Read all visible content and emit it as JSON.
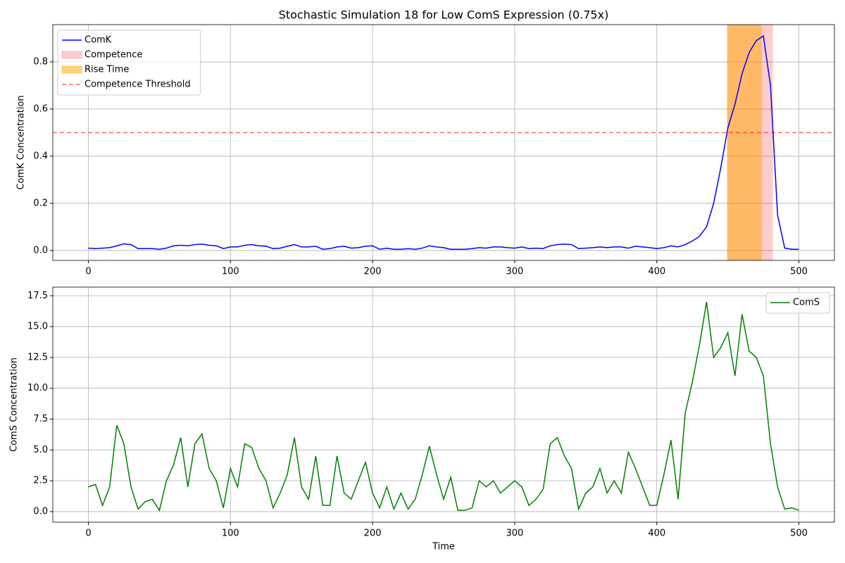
{
  "chart_data": [
    {
      "type": "line",
      "title": "Stochastic Simulation 18 for Low ComS Expression (0.75x)",
      "y_label": "ComK Concentration",
      "x": [
        0,
        5,
        10,
        15,
        20,
        25,
        30,
        35,
        40,
        45,
        50,
        55,
        60,
        65,
        70,
        75,
        80,
        85,
        90,
        95,
        100,
        105,
        110,
        115,
        120,
        125,
        130,
        135,
        140,
        145,
        150,
        155,
        160,
        165,
        170,
        175,
        180,
        185,
        190,
        195,
        200,
        205,
        210,
        215,
        220,
        225,
        230,
        235,
        240,
        245,
        250,
        255,
        260,
        265,
        270,
        275,
        280,
        285,
        290,
        295,
        300,
        305,
        310,
        315,
        320,
        325,
        330,
        335,
        340,
        345,
        350,
        355,
        360,
        365,
        370,
        375,
        380,
        385,
        390,
        395,
        400,
        405,
        410,
        415,
        420,
        425,
        430,
        435,
        440,
        445,
        450,
        455,
        460,
        465,
        470,
        475,
        480,
        485,
        490,
        495,
        500
      ],
      "series": [
        {
          "name": "ComK",
          "color": "#0000ff",
          "values": [
            0.01,
            0.008,
            0.01,
            0.012,
            0.02,
            0.028,
            0.025,
            0.008,
            0.008,
            0.008,
            0.005,
            0.01,
            0.02,
            0.022,
            0.02,
            0.025,
            0.027,
            0.022,
            0.02,
            0.008,
            0.015,
            0.015,
            0.022,
            0.025,
            0.02,
            0.018,
            0.008,
            0.01,
            0.018,
            0.025,
            0.015,
            0.015,
            0.018,
            0.005,
            0.008,
            0.015,
            0.018,
            0.01,
            0.012,
            0.018,
            0.02,
            0.005,
            0.01,
            0.005,
            0.005,
            0.008,
            0.005,
            0.01,
            0.02,
            0.015,
            0.012,
            0.005,
            0.005,
            0.005,
            0.008,
            0.012,
            0.01,
            0.015,
            0.015,
            0.012,
            0.01,
            0.015,
            0.008,
            0.01,
            0.008,
            0.02,
            0.025,
            0.027,
            0.025,
            0.008,
            0.01,
            0.012,
            0.015,
            0.012,
            0.015,
            0.015,
            0.01,
            0.018,
            0.015,
            0.012,
            0.008,
            0.012,
            0.02,
            0.015,
            0.025,
            0.04,
            0.06,
            0.1,
            0.2,
            0.35,
            0.52,
            0.62,
            0.75,
            0.84,
            0.89,
            0.91,
            0.7,
            0.15,
            0.01,
            0.005,
            0.005
          ]
        }
      ],
      "spans": [
        {
          "name": "Competence",
          "x": [
            449.5,
            481.7
          ],
          "color": "#ff0000",
          "opacity": 0.2
        },
        {
          "name": "Rise Time",
          "x": [
            449.5,
            473.8
          ],
          "color": "#ffa500",
          "opacity": 0.5
        }
      ],
      "threshold": {
        "name": "Competence Threshold",
        "value": 0.5,
        "color": "#ff0000",
        "opacity": 0.6
      },
      "xlim": [
        -25,
        525
      ],
      "xticks": [
        0,
        100,
        200,
        300,
        400,
        500
      ],
      "ylim": [
        -0.042,
        0.958
      ],
      "yticks": [
        {
          "value": 0,
          "label": "0.0"
        },
        0.2,
        0.4,
        0.6,
        0.8
      ],
      "grid": true,
      "legend": "upper left"
    },
    {
      "type": "line",
      "x_label": "Time",
      "y_label": "ComS Concentration",
      "x": [
        0,
        5,
        10,
        15,
        20,
        25,
        30,
        35,
        40,
        45,
        50,
        55,
        60,
        65,
        70,
        75,
        80,
        85,
        90,
        95,
        100,
        105,
        110,
        115,
        120,
        125,
        130,
        135,
        140,
        145,
        150,
        155,
        160,
        165,
        170,
        175,
        180,
        185,
        190,
        195,
        200,
        205,
        210,
        215,
        220,
        225,
        230,
        235,
        240,
        245,
        250,
        255,
        260,
        265,
        270,
        275,
        280,
        285,
        290,
        295,
        300,
        305,
        310,
        315,
        320,
        325,
        330,
        335,
        340,
        345,
        350,
        355,
        360,
        365,
        370,
        375,
        380,
        385,
        390,
        395,
        400,
        405,
        410,
        415,
        420,
        425,
        430,
        435,
        440,
        445,
        450,
        455,
        460,
        465,
        470,
        475,
        480,
        485,
        490,
        495,
        500
      ],
      "series": [
        {
          "name": "ComS",
          "color": "#008000",
          "values": [
            2.0,
            2.2,
            0.5,
            2.0,
            7.0,
            5.5,
            2.0,
            0.2,
            0.8,
            1.0,
            0.1,
            2.5,
            3.8,
            6.0,
            2.0,
            5.5,
            6.3,
            3.5,
            2.5,
            0.3,
            3.5,
            2.0,
            5.5,
            5.2,
            3.5,
            2.5,
            0.3,
            1.5,
            3.0,
            6.0,
            2.0,
            1.0,
            4.5,
            0.5,
            0.5,
            4.5,
            1.5,
            1.0,
            2.5,
            4.0,
            1.5,
            0.3,
            2.0,
            0.2,
            1.5,
            0.2,
            1.0,
            3.0,
            5.3,
            3.0,
            1.0,
            2.8,
            0.1,
            0.1,
            0.3,
            2.5,
            2.0,
            2.5,
            1.5,
            2.0,
            2.5,
            2.0,
            0.5,
            1.0,
            1.8,
            5.5,
            6.0,
            4.5,
            3.5,
            0.2,
            1.5,
            2.0,
            3.5,
            1.5,
            2.5,
            1.5,
            4.8,
            3.5,
            2.0,
            0.5,
            0.5,
            3.0,
            5.8,
            1.0,
            8.0,
            10.5,
            13.5,
            17.0,
            12.5,
            13.3,
            14.5,
            11.0,
            16.0,
            13.0,
            12.5,
            11.0,
            5.5,
            2.0,
            0.2,
            0.3,
            0.1
          ]
        }
      ],
      "xlim": [
        -25,
        525
      ],
      "xticks": [
        0,
        100,
        200,
        300,
        400,
        500
      ],
      "ylim": [
        -0.86,
        18.2
      ],
      "yticks": [
        {
          "value": 0,
          "label": "0.0"
        },
        2.5,
        {
          "value": 5,
          "label": "5.0"
        },
        7.5,
        {
          "value": 10,
          "label": "10.0"
        },
        12.5,
        {
          "value": 15,
          "label": "15.0"
        },
        17.5
      ],
      "grid": true,
      "legend": "upper right"
    }
  ]
}
